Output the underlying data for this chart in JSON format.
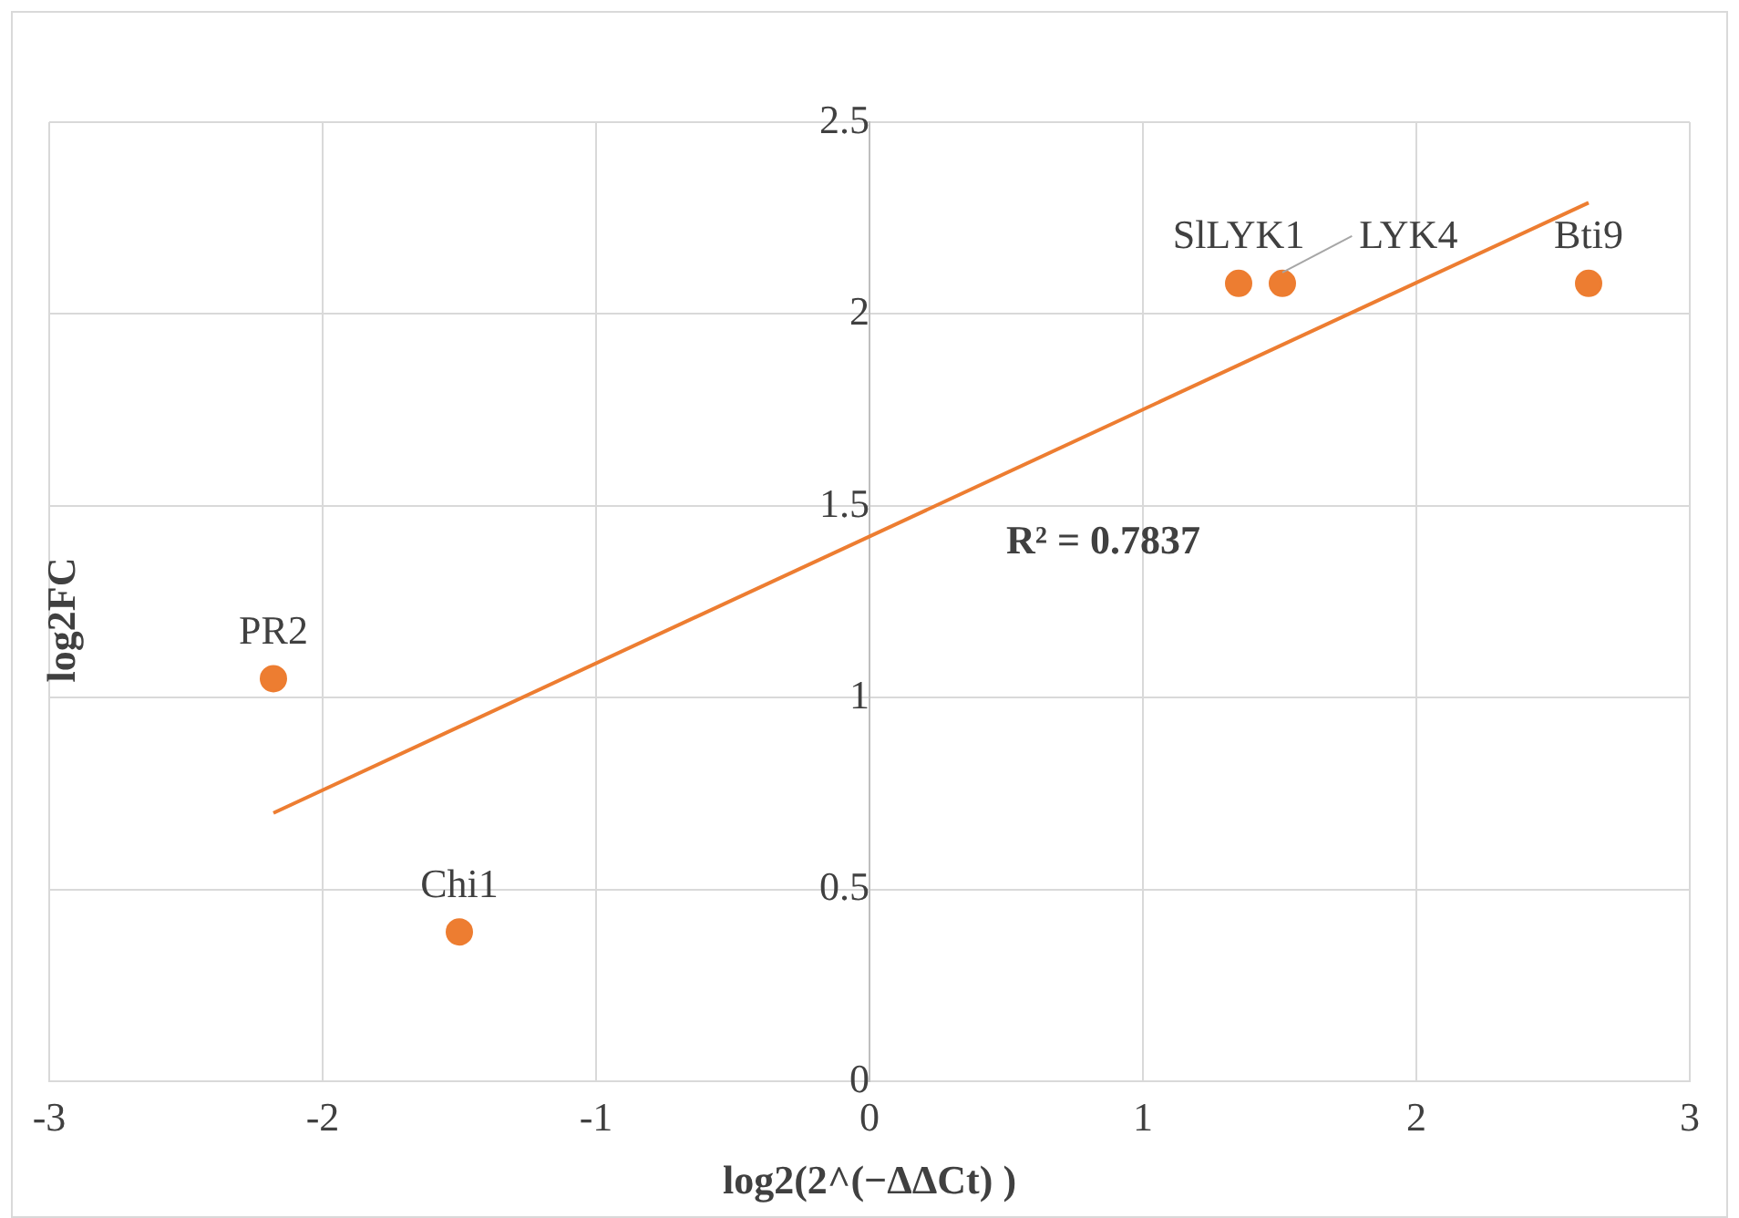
{
  "chart_data": {
    "type": "scatter",
    "xlabel": "log2(2^(−ΔΔCt) )",
    "ylabel": "log2FC",
    "x": [
      -2.18,
      -1.5,
      1.35,
      1.51,
      2.63
    ],
    "series": [
      {
        "color": "#ed7d31",
        "values": [
          1.05,
          0.39,
          2.08,
          2.08,
          2.08
        ]
      },
      {
        "type": "line",
        "marker": "none",
        "color": "#ed7d31",
        "x": [
          -2.18,
          2.63
        ],
        "values": [
          0.7,
          2.29
        ]
      }
    ],
    "xlim": [
      -3,
      3
    ],
    "xticks": [
      -3,
      -2,
      -1,
      0,
      1,
      2,
      3
    ],
    "ylim": [
      0,
      2.5
    ],
    "yticks": [
      0,
      0.5,
      1,
      1.5,
      2,
      2.5
    ],
    "grid": true,
    "legend": false,
    "marker": "circle",
    "annotations": [
      {
        "text": "PR2",
        "x": -2.18,
        "y": 1.05
      },
      {
        "text": "Chi1",
        "x": -1.5,
        "y": 0.39
      },
      {
        "text": "SlLYK1",
        "x": 1.35,
        "y": 2.08
      },
      {
        "text": "LYK4",
        "x": 1.51,
        "y": 2.08
      },
      {
        "text": "Bti9",
        "x": 2.63,
        "y": 2.08
      },
      "R² = 0.7837"
    ]
  }
}
